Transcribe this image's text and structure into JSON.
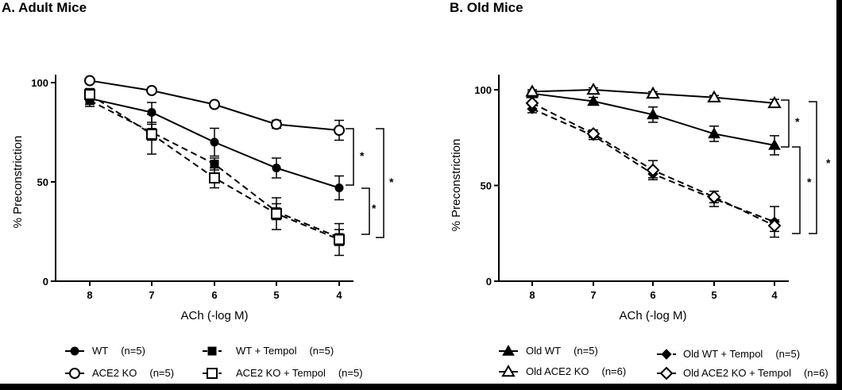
{
  "colors": {
    "ink": "#000000",
    "background": "#ffffff",
    "frame": "#000000"
  },
  "chart_data": [
    {
      "type": "line",
      "title": "A. Adult Mice",
      "xlabel": "ACh (-log M)",
      "ylabel": "% Preconstriction",
      "x": [
        8,
        7,
        6,
        5,
        4
      ],
      "xticks": [
        "8",
        "7",
        "6",
        "5",
        "4"
      ],
      "yticks": [
        "0",
        "50",
        "100"
      ],
      "ylim": [
        0,
        100
      ],
      "series": [
        {
          "name": "WT",
          "n": "(n=5)",
          "marker": "filled-circle",
          "dash": false,
          "values": [
            92,
            85,
            70,
            57,
            47
          ],
          "err": [
            3,
            5,
            7,
            5,
            6
          ]
        },
        {
          "name": "ACE2 KO",
          "n": "(n=5)",
          "marker": "open-circle",
          "dash": false,
          "values": [
            101,
            96,
            89,
            79,
            76
          ],
          "err": [
            1,
            1,
            1,
            2,
            5
          ]
        },
        {
          "name": "WT + Tempol",
          "n": "(n=5)",
          "marker": "filled-square",
          "dash": true,
          "values": [
            91,
            75,
            59,
            35,
            22
          ],
          "err": [
            3,
            4,
            3,
            4,
            4
          ]
        },
        {
          "name": "ACE2 KO + Tempol",
          "n": "(n=5)",
          "marker": "open-square",
          "dash": true,
          "values": [
            94,
            74,
            52,
            34,
            21
          ],
          "err": [
            3,
            10,
            5,
            8,
            8
          ]
        }
      ],
      "annotations": [
        "*",
        "*",
        "*"
      ]
    },
    {
      "type": "line",
      "title": "B. Old Mice",
      "xlabel": "ACh (-log M)",
      "ylabel": "% Preconstriction",
      "x": [
        8,
        7,
        6,
        5,
        4
      ],
      "xticks": [
        "8",
        "7",
        "6",
        "5",
        "4"
      ],
      "yticks": [
        "0",
        "50",
        "100"
      ],
      "ylim": [
        0,
        100
      ],
      "series": [
        {
          "name": "Old WT",
          "n": "(n=5)",
          "marker": "filled-triangle",
          "dash": false,
          "values": [
            98,
            94,
            87,
            77,
            71
          ],
          "err": [
            1,
            2,
            4,
            4,
            5
          ]
        },
        {
          "name": "Old ACE2 KO",
          "n": "(n=6)",
          "marker": "open-triangle",
          "dash": false,
          "values": [
            99,
            100,
            98,
            96,
            93
          ],
          "err": [
            1,
            1,
            1,
            1,
            2
          ]
        },
        {
          "name": "Old WT + Tempol",
          "n": "(n=5)",
          "marker": "filled-diamond",
          "dash": true,
          "values": [
            90,
            76,
            56,
            43,
            31
          ],
          "err": [
            2,
            2,
            2,
            4,
            8
          ]
        },
        {
          "name": "Old ACE2 KO + Tempol",
          "n": "(n=6)",
          "marker": "open-diamond",
          "dash": true,
          "values": [
            93,
            77,
            58,
            44,
            29
          ],
          "err": [
            1,
            2,
            5,
            3,
            3
          ]
        }
      ],
      "annotations": [
        "*",
        "*",
        "*"
      ]
    }
  ]
}
